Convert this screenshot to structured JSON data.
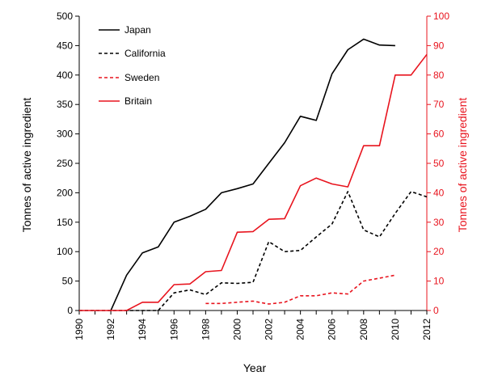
{
  "chart_data": {
    "type": "line",
    "xlabel": "Year",
    "ylabel_left": "Tonnes of active ingredient",
    "ylabel_right": "Tonnes of active ingredient",
    "xlim": [
      1990,
      2012
    ],
    "ylim_left": [
      0,
      500
    ],
    "ylim_right": [
      0,
      100
    ],
    "x_ticks": [
      "1990",
      "1992",
      "1994",
      "1996",
      "1998",
      "2000",
      "2002",
      "2004",
      "2006",
      "2008",
      "2010",
      "2012"
    ],
    "y_ticks_left": [
      "0",
      "50",
      "100",
      "150",
      "200",
      "250",
      "300",
      "350",
      "400",
      "450",
      "500"
    ],
    "y_ticks_right": [
      "0",
      "10",
      "20",
      "30",
      "40",
      "50",
      "60",
      "70",
      "80",
      "90",
      "100"
    ],
    "grid": false,
    "legend_position": "top-left",
    "colors": {
      "left_axis": "#000000",
      "right_axis": "#e8141e"
    },
    "series": [
      {
        "name": "Japan",
        "axis": "left",
        "color": "#000000",
        "dash": "solid",
        "x": [
          1992,
          1993,
          1994,
          1995,
          1996,
          1997,
          1998,
          1999,
          2000,
          2001,
          2002,
          2003,
          2004,
          2005,
          2006,
          2007,
          2008,
          2009,
          2010
        ],
        "y": [
          0,
          60,
          98,
          108,
          150,
          160,
          172,
          200,
          207,
          215,
          250,
          285,
          330,
          323,
          402,
          443,
          461,
          451,
          450
        ]
      },
      {
        "name": "California",
        "axis": "left",
        "color": "#000000",
        "dash": "dashed",
        "x": [
          1990,
          1991,
          1992,
          1993,
          1994,
          1995,
          1996,
          1997,
          1998,
          1999,
          2000,
          2001,
          2002,
          2003,
          2004,
          2005,
          2006,
          2007,
          2008,
          2009,
          2010,
          2011,
          2012
        ],
        "y": [
          0,
          0,
          0,
          0,
          0,
          0,
          30,
          35,
          27,
          47,
          46,
          48,
          117,
          100,
          102,
          125,
          147,
          202,
          137,
          125,
          165,
          202,
          193
        ]
      },
      {
        "name": "Sweden",
        "axis": "right",
        "color": "#e8141e",
        "dash": "dashed",
        "x": [
          1998,
          1999,
          2000,
          2001,
          2002,
          2003,
          2004,
          2005,
          2006,
          2007,
          2008,
          2009,
          2010
        ],
        "y": [
          2.4,
          2.4,
          2.8,
          3.2,
          2.2,
          2.8,
          5.0,
          5.0,
          6.0,
          5.6,
          10.0,
          11.0,
          12.0
        ]
      },
      {
        "name": "Britain",
        "axis": "right",
        "color": "#e8141e",
        "dash": "solid",
        "x": [
          1990,
          1991,
          1992,
          1993,
          1994,
          1995,
          1996,
          1997,
          1998,
          1999,
          2000,
          2001,
          2002,
          2003,
          2004,
          2005,
          2006,
          2007,
          2008,
          2009,
          2010,
          2011,
          2012
        ],
        "y": [
          0,
          0,
          0,
          0,
          2.8,
          2.8,
          8.8,
          9.0,
          13.2,
          13.6,
          26.6,
          26.8,
          31.0,
          31.2,
          42.4,
          45.0,
          43.0,
          42.0,
          56.0,
          56.0,
          80.0,
          80.0,
          87.0
        ]
      }
    ]
  }
}
